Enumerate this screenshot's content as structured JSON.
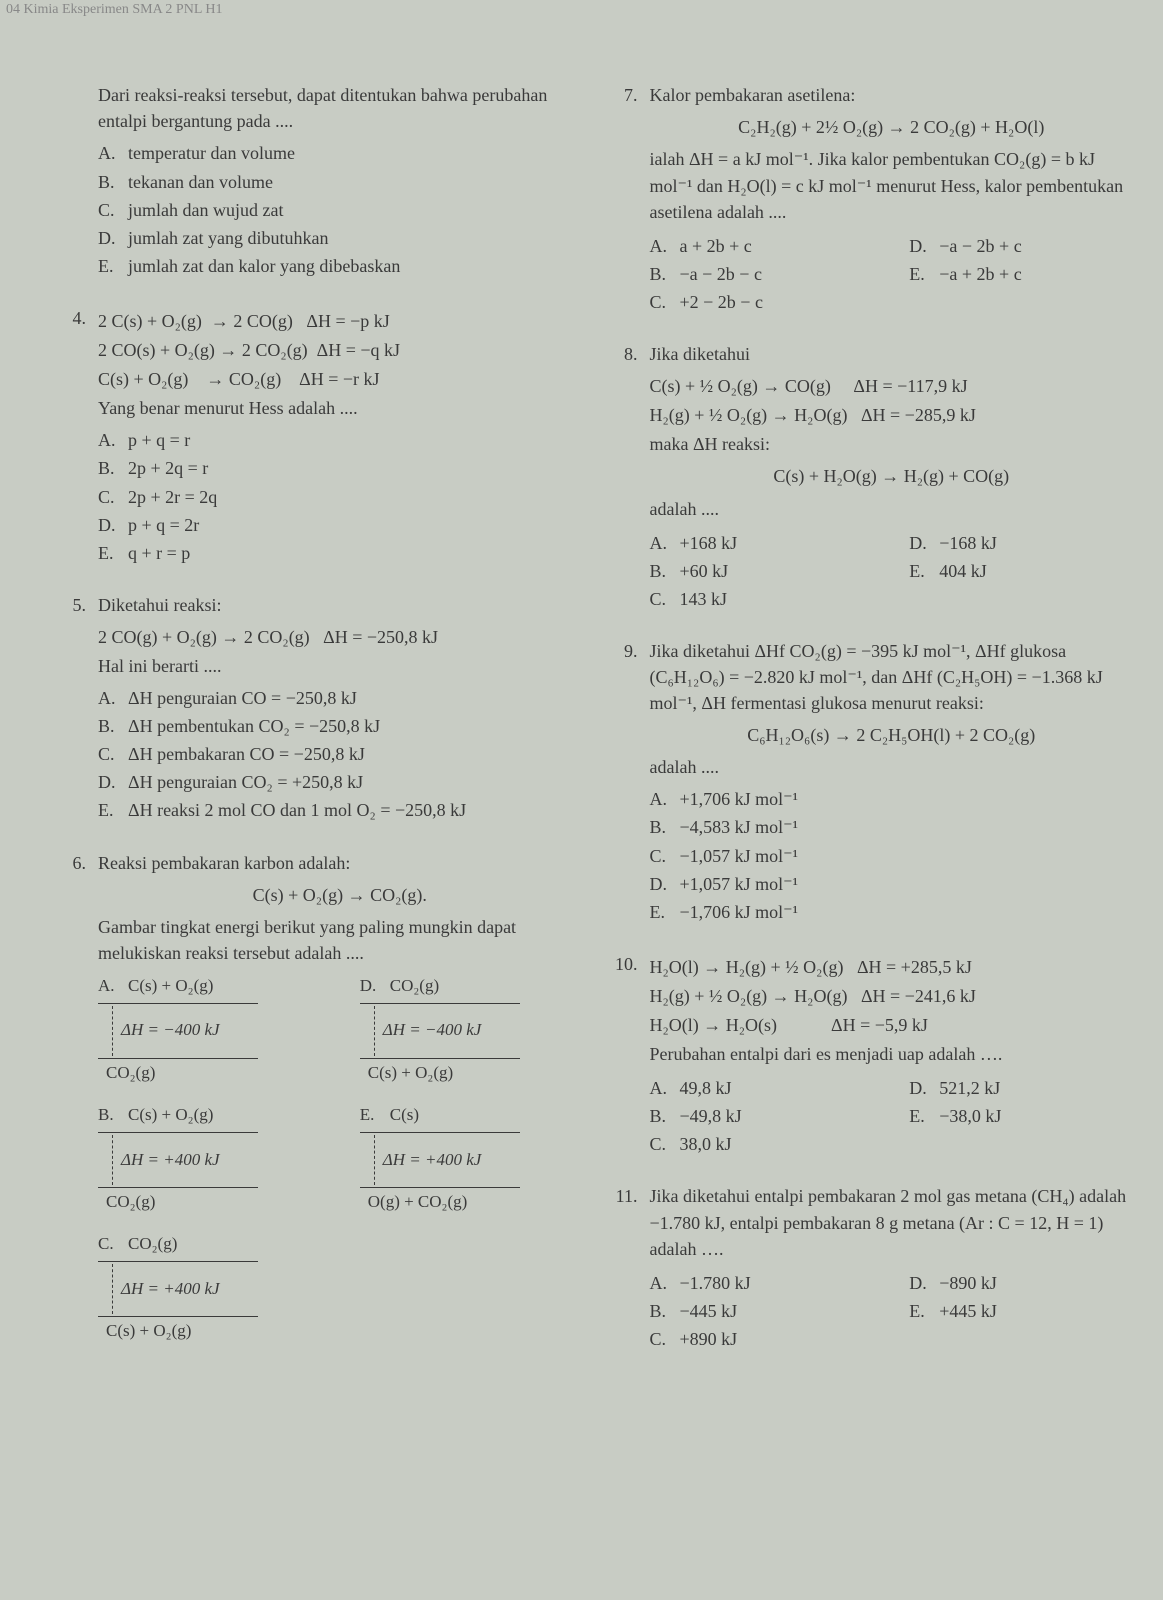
{
  "header": "04  Kimia Eksperimen SMA 2 PNL H1",
  "col1": {
    "intro": {
      "p1": "Dari reaksi-reaksi tersebut, dapat ditentukan bahwa perubahan entalpi bergantung pada ....",
      "opts": {
        "A": "temperatur dan volume",
        "B": "tekanan dan volume",
        "C": "jumlah dan wujud zat",
        "D": "jumlah zat yang dibutuhkan",
        "E": "jumlah zat dan kalor yang dibebaskan"
      }
    },
    "q4": {
      "num": "4.",
      "eq1": "2 C(s) + O₂(g)  → 2 CO(g)   ΔH = −p kJ",
      "eq2": "2 CO(s) + O₂(g) → 2 CO₂(g)  ΔH = −q kJ",
      "eq3": "C(s) + O₂(g)    → CO₂(g)    ΔH = −r kJ",
      "stem": "Yang benar menurut Hess adalah ....",
      "opts": {
        "A": "p + q = r",
        "B": "2p + 2q = r",
        "C": "2p + 2r = 2q",
        "D": "p + q = 2r",
        "E": "q + r = p"
      }
    },
    "q5": {
      "num": "5.",
      "stem1": "Diketahui reaksi:",
      "eq": "2 CO(g) + O₂(g) → 2 CO₂(g)   ΔH = −250,8 kJ",
      "stem2": "Hal ini berarti ....",
      "opts": {
        "A": "ΔH penguraian CO = −250,8 kJ",
        "B": "ΔH pembentukan CO₂ = −250,8 kJ",
        "C": "ΔH pembakaran CO = −250,8 kJ",
        "D": "ΔH penguraian CO₂ = +250,8 kJ",
        "E": "ΔH reaksi 2 mol CO dan 1 mol O₂ = −250,8 kJ"
      }
    },
    "q6": {
      "num": "6.",
      "stem1": "Reaksi pembakaran karbon adalah:",
      "eq": "C(s) + O₂(g) → CO₂(g).",
      "stem2": "Gambar tingkat energi berikut yang paling mungkin dapat melukiskan reaksi tersebut adalah ....",
      "diagrams": {
        "A": {
          "label": "A.",
          "top": "C(s) + O₂(g)",
          "dh": "ΔH = −400 kJ",
          "bottom": "CO₂(g)"
        },
        "B": {
          "label": "B.",
          "top": "C(s) + O₂(g)",
          "dh": "ΔH = +400 kJ",
          "bottom": "CO₂(g)"
        },
        "C": {
          "label": "C.",
          "top": "CO₂(g)",
          "dh": "ΔH = +400 kJ",
          "bottom": "C(s) + O₂(g)"
        },
        "D": {
          "label": "D.",
          "top": "CO₂(g)",
          "dh": "ΔH = −400 kJ",
          "bottom": "C(s) + O₂(g)"
        },
        "E": {
          "label": "E.",
          "top": "C(s)",
          "dh": "ΔH = +400 kJ",
          "bottom": "O(g) + CO₂(g)"
        }
      }
    }
  },
  "col2": {
    "q7": {
      "num": "7.",
      "stem1": "Kalor pembakaran asetilena:",
      "eq": "C₂H₂(g) + 2½ O₂(g) → 2 CO₂(g) + H₂O(l)",
      "stem2": "ialah ΔH = a kJ mol⁻¹. Jika kalor pembentukan CO₂(g) = b kJ mol⁻¹ dan H₂O(l) = c kJ mol⁻¹ menurut Hess, kalor pembentukan asetilena adalah ....",
      "opts": {
        "A": "a + 2b + c",
        "B": "−a − 2b − c",
        "C": "+2 − 2b − c",
        "D": "−a − 2b + c",
        "E": "−a + 2b + c"
      }
    },
    "q8": {
      "num": "8.",
      "stem1": "Jika diketahui",
      "eq1": "C(s) + ½ O₂(g) → CO(g)     ΔH = −117,9 kJ",
      "eq2": "H₂(g) + ½ O₂(g) → H₂O(g)   ΔH = −285,9 kJ",
      "stem2": "maka ΔH reaksi:",
      "eq3": "C(s) + H₂O(g) → H₂(g) + CO(g)",
      "stem3": "adalah ....",
      "opts": {
        "A": "+168 kJ",
        "B": "+60 kJ",
        "C": "143 kJ",
        "D": "−168 kJ",
        "E": "404 kJ"
      }
    },
    "q9": {
      "num": "9.",
      "stem1": "Jika diketahui ΔHf CO₂(g) = −395 kJ mol⁻¹, ΔHf glukosa (C₆H₁₂O₆) = −2.820 kJ mol⁻¹, dan ΔHf (C₂H₅OH) = −1.368 kJ mol⁻¹, ΔH fermentasi glukosa menurut reaksi:",
      "eq": "C₆H₁₂O₆(s) → 2 C₂H₅OH(l) + 2 CO₂(g)",
      "stem2": "adalah ....",
      "opts": {
        "A": "+1,706 kJ mol⁻¹",
        "B": "−4,583 kJ mol⁻¹",
        "C": "−1,057 kJ mol⁻¹",
        "D": "+1,057 kJ mol⁻¹",
        "E": "−1,706 kJ mol⁻¹"
      }
    },
    "q10": {
      "num": "10.",
      "eq1": "H₂O(l) → H₂(g) + ½ O₂(g)   ΔH = +285,5 kJ",
      "eq2": "H₂(g) + ½ O₂(g) → H₂O(g)   ΔH = −241,6 kJ",
      "eq3": "H₂O(l) → H₂O(s)            ΔH = −5,9 kJ",
      "stem": "Perubahan entalpi dari es menjadi uap adalah ….",
      "opts": {
        "A": "49,8 kJ",
        "B": "−49,8 kJ",
        "C": "38,0 kJ",
        "D": "521,2 kJ",
        "E": "−38,0 kJ"
      }
    },
    "q11": {
      "num": "11.",
      "stem": "Jika diketahui entalpi pembakaran 2 mol gas metana (CH₄) adalah −1.780 kJ, entalpi pembakaran 8 g metana (Ar : C = 12, H = 1) adalah ….",
      "opts": {
        "A": "−1.780 kJ",
        "B": "−445 kJ",
        "C": "+890 kJ",
        "D": "−890 kJ",
        "E": "+445 kJ"
      }
    }
  }
}
